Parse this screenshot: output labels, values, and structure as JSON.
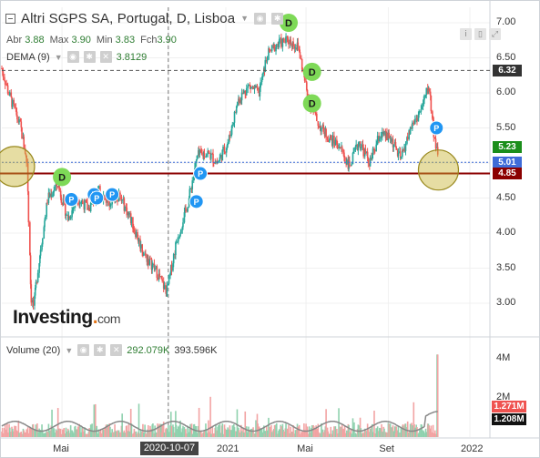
{
  "header": {
    "title": "Altri SGPS SA, Portugal, D, Lisboa",
    "ohlc": [
      {
        "label": "Abr",
        "value": "3.88"
      },
      {
        "label": "Max",
        "value": "3.90"
      },
      {
        "label": "Min",
        "value": "3.83"
      },
      {
        "label": "Fch",
        "value": "3.90"
      }
    ]
  },
  "indicators": {
    "dema": {
      "label": "DEMA (9)",
      "value": "3.8129"
    },
    "volume": {
      "label": "Volume (20)",
      "value": "292.079K",
      "ma_value": "393.596K"
    }
  },
  "branding": {
    "logo": "Investing",
    "domain": "com"
  },
  "colors": {
    "up": "#26a69a",
    "down": "#ef5350",
    "dema_line": "#e53935",
    "support_line": "#8b0000",
    "dividend_marker": "#7ed957",
    "split_marker": "#2196f3",
    "highlight_circle": "#c8b432"
  },
  "price_axis": {
    "ticks": [
      "7.00",
      "6.50",
      "6.00",
      "5.50",
      "5.00",
      "4.50",
      "4.00",
      "3.50",
      "3.00"
    ],
    "tags": [
      {
        "value": "6.32",
        "color": "#333333"
      },
      {
        "value": "5.23",
        "color": "#1b8e1b"
      },
      {
        "value": "5.01",
        "color": "#3f6cd8"
      },
      {
        "value": "4.85",
        "color": "#8b0000"
      }
    ]
  },
  "volume_axis": {
    "ticks": [
      "4M",
      "2M"
    ],
    "tags": [
      {
        "value": "1.271M",
        "color": "#ef5350"
      },
      {
        "value": "1.208M",
        "color": "#111111"
      }
    ]
  },
  "time_axis": {
    "ticks": [
      "Mai",
      "2021",
      "Mai",
      "Set",
      "2022"
    ],
    "highlight": "2020-10-07"
  },
  "markers": {
    "dividend": "D",
    "split": "P"
  },
  "chart_data": {
    "type": "candlestick",
    "title": "Altri SGPS SA, Portugal, D, Lisboa",
    "ylim": [
      2.75,
      7.25
    ],
    "x_range": [
      "2020-02-01",
      "2022-01-31"
    ],
    "price_path": [
      [
        "2020-02-01",
        6.35
      ],
      [
        "2020-02-15",
        5.9
      ],
      [
        "2020-03-01",
        5.5
      ],
      [
        "2020-03-10",
        5.0
      ],
      [
        "2020-03-16",
        3.1
      ],
      [
        "2020-03-20",
        2.95
      ],
      [
        "2020-03-28",
        3.6
      ],
      [
        "2020-04-10",
        4.5
      ],
      [
        "2020-04-25",
        4.7
      ],
      [
        "2020-05-10",
        4.2
      ],
      [
        "2020-05-25",
        4.5
      ],
      [
        "2020-06-10",
        4.35
      ],
      [
        "2020-06-25",
        4.6
      ],
      [
        "2020-07-10",
        4.45
      ],
      [
        "2020-07-25",
        4.55
      ],
      [
        "2020-08-10",
        4.25
      ],
      [
        "2020-09-01",
        3.7
      ],
      [
        "2020-09-20",
        3.45
      ],
      [
        "2020-10-05",
        3.15
      ],
      [
        "2020-10-20",
        3.9
      ],
      [
        "2020-11-05",
        4.4
      ],
      [
        "2020-11-20",
        5.1
      ],
      [
        "2020-12-05",
        5.15
      ],
      [
        "2020-12-20",
        5.0
      ],
      [
        "2021-01-05",
        5.3
      ],
      [
        "2021-01-20",
        5.9
      ],
      [
        "2021-02-05",
        6.1
      ],
      [
        "2021-02-20",
        6.0
      ],
      [
        "2021-03-05",
        6.55
      ],
      [
        "2021-03-20",
        6.7
      ],
      [
        "2021-04-05",
        6.75
      ],
      [
        "2021-04-20",
        6.65
      ],
      [
        "2021-05-05",
        5.9
      ],
      [
        "2021-05-20",
        5.55
      ],
      [
        "2021-06-05",
        5.35
      ],
      [
        "2021-06-20",
        5.25
      ],
      [
        "2021-07-05",
        4.95
      ],
      [
        "2021-07-20",
        5.3
      ],
      [
        "2021-08-05",
        5.0
      ],
      [
        "2021-08-20",
        5.4
      ],
      [
        "2021-09-05",
        5.35
      ],
      [
        "2021-09-20",
        5.05
      ],
      [
        "2021-10-05",
        5.5
      ],
      [
        "2021-10-20",
        5.75
      ],
      [
        "2021-11-01",
        6.1
      ],
      [
        "2021-11-08",
        5.5
      ],
      [
        "2021-11-15",
        5.01
      ]
    ],
    "dividend_events": [
      {
        "date": "2020-05-01",
        "price": 4.8
      },
      {
        "date": "2021-04-05",
        "price": 7.0
      },
      {
        "date": "2021-05-10",
        "price": 6.3
      },
      {
        "date": "2021-05-10",
        "price": 5.85
      }
    ],
    "split_events": [
      {
        "date": "2020-05-15",
        "price": 4.48
      },
      {
        "date": "2020-06-18",
        "price": 4.55
      },
      {
        "date": "2020-06-22",
        "price": 4.5
      },
      {
        "date": "2020-07-15",
        "price": 4.55
      },
      {
        "date": "2020-11-18",
        "price": 4.45
      },
      {
        "date": "2020-11-24",
        "price": 4.85
      },
      {
        "date": "2021-11-12",
        "price": 5.5
      }
    ],
    "support_level": 4.85,
    "reference_level": 6.32,
    "last_price": 5.01,
    "dema": 5.23,
    "highlights": [
      {
        "date": "2020-02-20",
        "price": 4.95
      },
      {
        "date": "2021-11-15",
        "price": 4.9
      }
    ],
    "volume": {
      "ylim": [
        0,
        4.4
      ],
      "unit": "M",
      "spike_max": 4.2,
      "ma_last": 1.208,
      "last": 1.271
    }
  }
}
